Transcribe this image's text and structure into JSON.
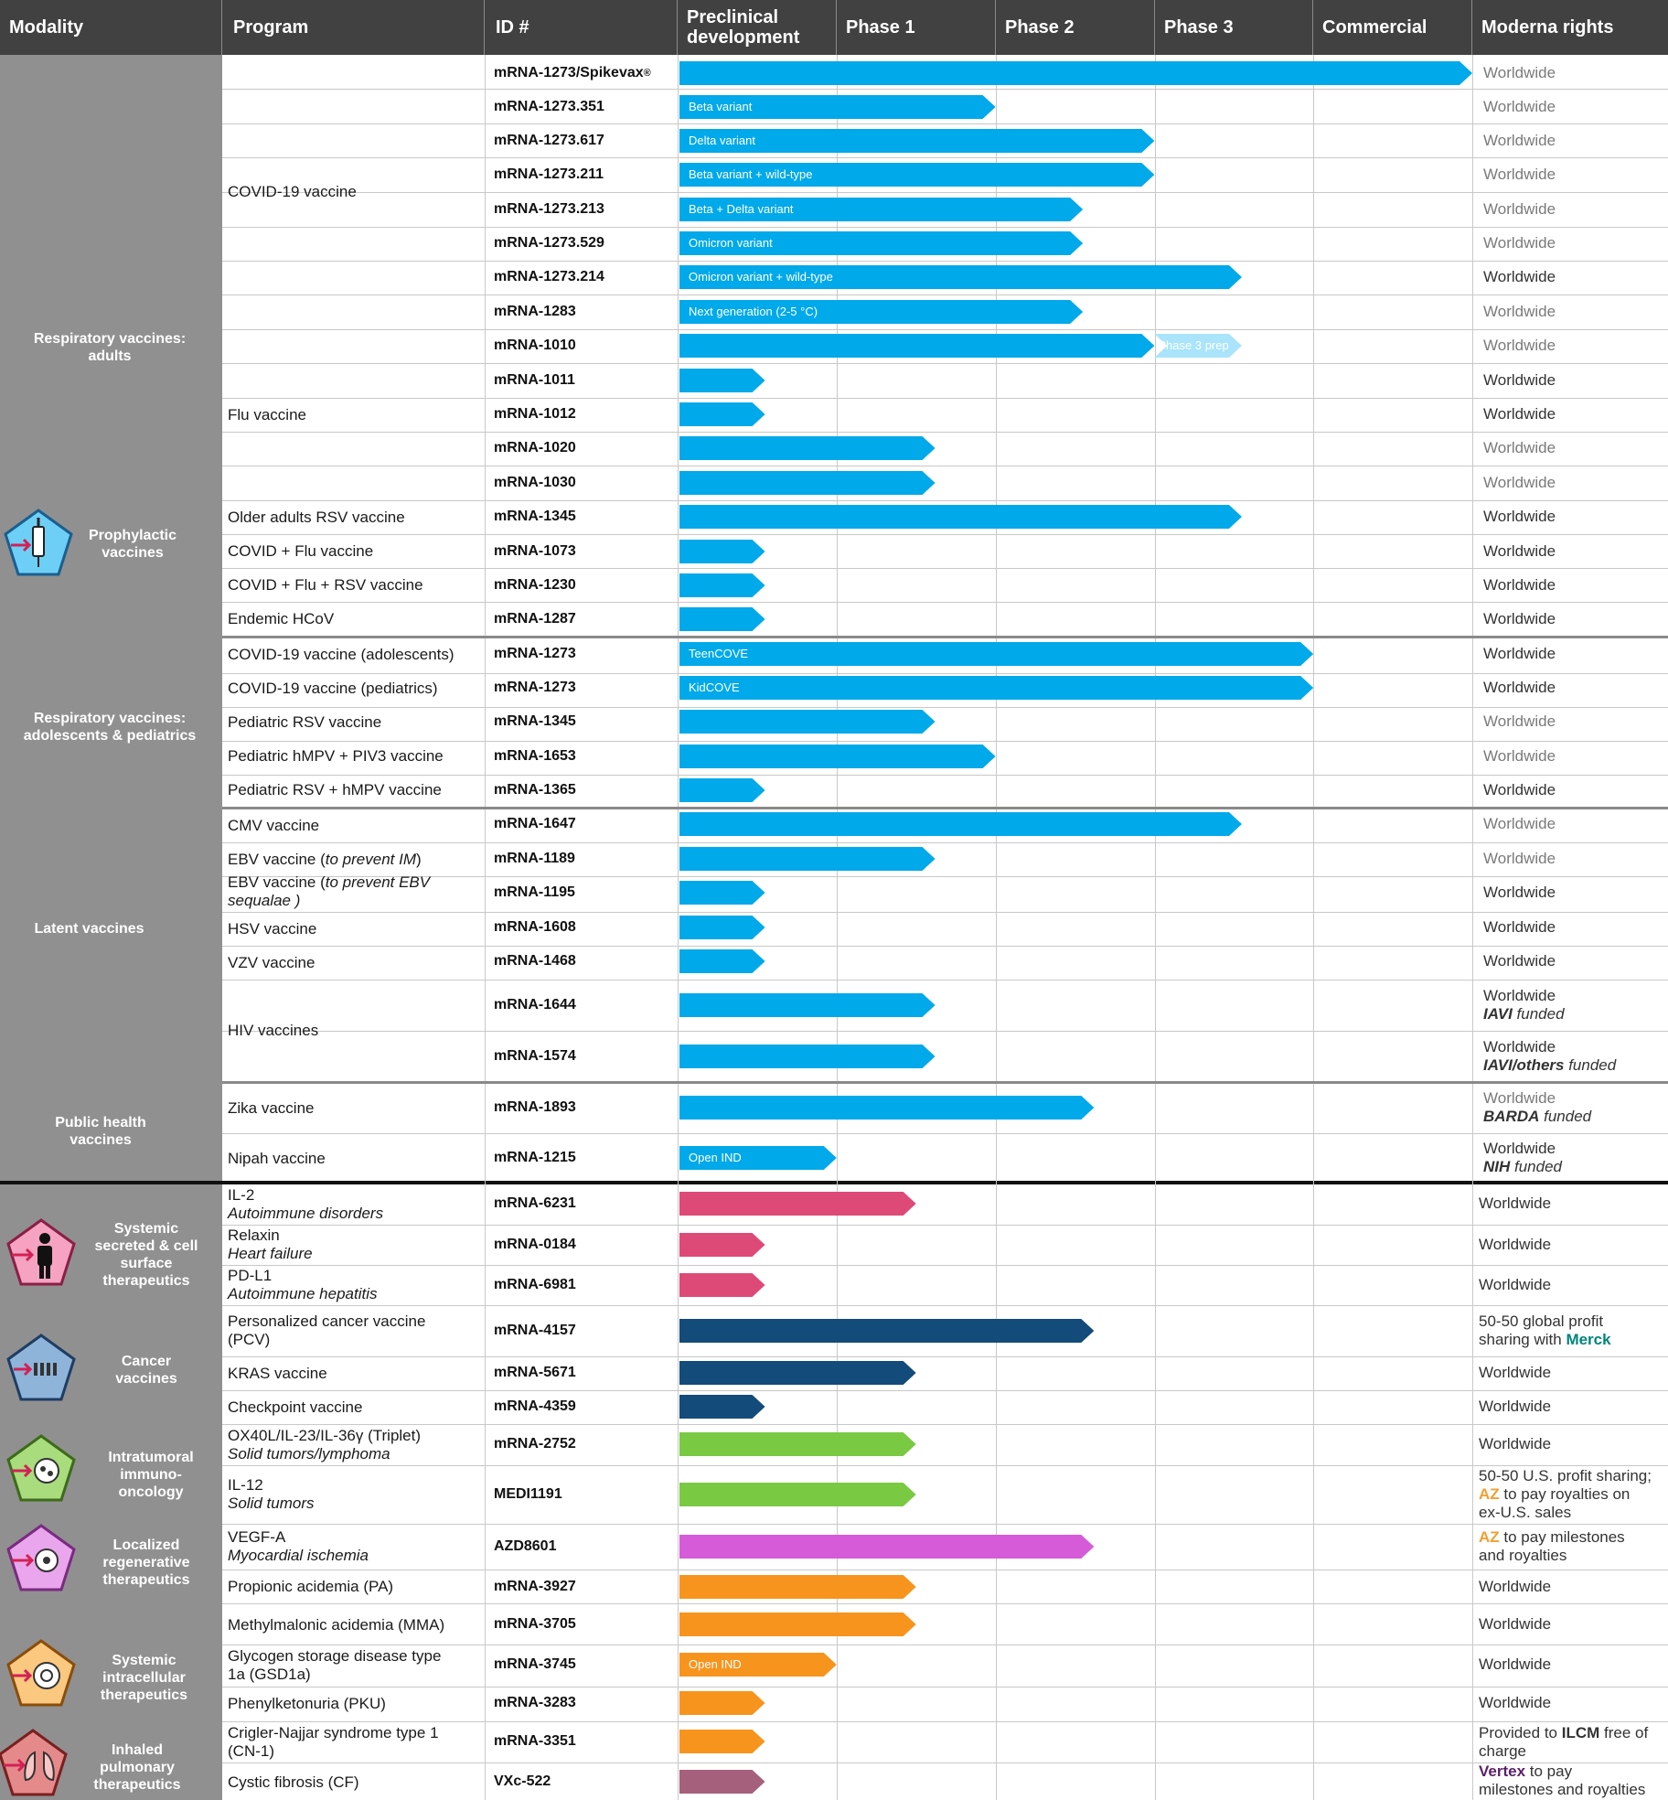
{
  "header": {
    "modality": "Modality",
    "program": "Program",
    "id": "ID #",
    "preclinical": "Preclinical\ndevelopment",
    "phase1": "Phase 1",
    "phase2": "Phase 2",
    "phase3": "Phase 3",
    "commercial": "Commercial",
    "rights": "Moderna rights"
  },
  "colors": {
    "header_bg": "#414141",
    "left_bg": "#909090",
    "blue": "#00a9e9",
    "navy": "#134b7a",
    "pink": "#dd4a78",
    "green": "#7ac943",
    "magenta": "#d65bd8",
    "orange": "#f7941d",
    "mauve": "#a5617c",
    "az_orange": "#f0a030",
    "merck_teal": "#00857c",
    "vertex_purple": "#5b1f69"
  },
  "modalities": {
    "resp_adults": "Respiratory vaccines:\nadults",
    "prophylactic": "Prophylactic\nvaccines",
    "resp_peds": "Respiratory vaccines:\nadolescents & pediatrics",
    "latent": "Latent vaccines",
    "public_health": "Public health\nvaccines",
    "systemic_secreted": "Systemic\nsecreted & cell\nsurface\ntherapeutics",
    "cancer": "Cancer\nvaccines",
    "intratumoral": "Intratumoral\nimmuno-\noncology",
    "localized": "Localized\nregenerative\ntherapeutics",
    "systemic_intracellular": "Systemic\nintracellular\ntherapeutics",
    "inhaled": "Inhaled\npulmonary\ntherapeutics"
  },
  "programs": {
    "covid": "COVID-19 vaccine",
    "flu": "Flu vaccine",
    "older_rsv": "Older adults RSV vaccine",
    "covid_flu": "COVID + Flu vaccine",
    "covid_flu_rsv": "COVID + Flu + RSV vaccine",
    "endemic": "Endemic HCoV",
    "covid_adol": "COVID-19 vaccine (adolescents)",
    "covid_ped": "COVID-19 vaccine (pediatrics)",
    "ped_rsv": "Pediatric  RSV vaccine",
    "ped_hmpv": "Pediatric hMPV + PIV3 vaccine",
    "ped_rsv_hmpv": "Pediatric RSV + hMPV vaccine",
    "cmv": "CMV vaccine",
    "ebv1_a": "EBV vaccine (",
    "ebv1_b": "to prevent IM",
    "ebv1_c": ")",
    "ebv2_a": "EBV vaccine (",
    "ebv2_b": "to prevent EBV",
    "ebv2_c": "sequalae )",
    "hsv": "HSV vaccine",
    "vzv": "VZV vaccine",
    "hiv": "HIV vaccines",
    "zika": "Zika vaccine",
    "nipah": "Nipah vaccine",
    "il2": "IL-2",
    "il2_sub": "Autoimmune disorders",
    "relaxin": "Relaxin",
    "relaxin_sub": "Heart failure",
    "pdl1": "PD-L1",
    "pdl1_sub": "Autoimmune hepatitis",
    "pcv1": "Personalized cancer vaccine",
    "pcv2": "(PCV)",
    "kras": "KRAS vaccine",
    "checkpoint": "Checkpoint vaccine",
    "triplet": "OX40L/IL-23/IL-36γ  (Triplet)",
    "triplet_sub": "Solid tumors/lymphoma",
    "il12": "IL-12",
    "il12_sub": "Solid tumors",
    "vegf": "VEGF-A",
    "vegf_sub": "Myocardial ischemia",
    "pa": "Propionic acidemia (PA)",
    "mma": "Methylmalonic acidemia (MMA)",
    "gsd1": "Glycogen storage disease type",
    "gsd2": "1a (GSD1a)",
    "pku": "Phenylketonuria (PKU)",
    "cn1": "Crigler-Najjar syndrome type 1",
    "cn2": "(CN-1)",
    "cf": "Cystic fibrosis (CF)"
  },
  "ids": {
    "r1": "mRNA-1273/Spikevax",
    "r1_reg": "®",
    "r2": "mRNA-1273.351",
    "r3": "mRNA-1273.617",
    "r4": "mRNA-1273.211",
    "r5": "mRNA-1273.213",
    "r6": "mRNA-1273.529",
    "r7": "mRNA-1273.214",
    "r8": "mRNA-1283",
    "r9": "mRNA-1010",
    "r10": "mRNA-1011",
    "r11": "mRNA-1012",
    "r12": "mRNA-1020",
    "r13": "mRNA-1030",
    "r14": "mRNA-1345",
    "r15": "mRNA-1073",
    "r16": "mRNA-1230",
    "r17": "mRNA-1287",
    "r18": "mRNA-1273",
    "r19": "mRNA-1273",
    "r20": "mRNA-1345",
    "r21": "mRNA-1653",
    "r22": "mRNA-1365",
    "r23": "mRNA-1647",
    "r24": "mRNA-1189",
    "r25": "mRNA-1195",
    "r26": "mRNA-1608",
    "r27": "mRNA-1468",
    "r28": "mRNA-1644",
    "r29": "mRNA-1574",
    "r30": "mRNA-1893",
    "r31": "mRNA-1215",
    "r32": "mRNA-6231",
    "r33": "mRNA-0184",
    "r34": "mRNA-6981",
    "r35": "mRNA-4157",
    "r36": "mRNA-5671",
    "r37": "mRNA-4359",
    "r38": "mRNA-2752",
    "r39": "MEDI1191",
    "r40": "AZD8601",
    "r41": "mRNA-3927",
    "r42": "mRNA-3705",
    "r43": "mRNA-3745",
    "r44": "mRNA-3283",
    "r45": "mRNA-3351",
    "r46": "VXc-522"
  },
  "bars": {
    "r1": {
      "label": "",
      "stage": 5.0,
      "color": "blue"
    },
    "r2": {
      "label": "Beta variant",
      "stage": 2.0,
      "color": "blue"
    },
    "r3": {
      "label": "Delta variant",
      "stage": 3.0,
      "color": "blue"
    },
    "r4": {
      "label": "Beta variant + wild-type",
      "stage": 3.0,
      "color": "blue"
    },
    "r5": {
      "label": "Beta + Delta variant",
      "stage": 2.55,
      "color": "blue"
    },
    "r6": {
      "label": "Omicron variant",
      "stage": 2.55,
      "color": "blue"
    },
    "r7": {
      "label": "Omicron variant + wild-type",
      "stage": 3.55,
      "color": "blue"
    },
    "r8": {
      "label": "Next generation (2-5 °C)",
      "stage": 2.55,
      "color": "blue"
    },
    "r9": {
      "label": "",
      "stage": 3.0,
      "color": "blue"
    },
    "r9_ext": {
      "label": "Phase 3 prep",
      "stage": 3.55,
      "color": "#a9e4fa"
    },
    "r10": {
      "label": "",
      "stage": 0.55,
      "color": "blue"
    },
    "r11": {
      "label": "",
      "stage": 0.55,
      "color": "blue"
    },
    "r12": {
      "label": "",
      "stage": 1.62,
      "color": "blue"
    },
    "r13": {
      "label": "",
      "stage": 1.62,
      "color": "blue"
    },
    "r14": {
      "label": "",
      "stage": 3.55,
      "color": "blue"
    },
    "r15": {
      "label": "",
      "stage": 0.55,
      "color": "blue"
    },
    "r16": {
      "label": "",
      "stage": 0.55,
      "color": "blue"
    },
    "r17": {
      "label": "",
      "stage": 0.55,
      "color": "blue"
    },
    "r18": {
      "label": "TeenCOVE",
      "stage": 4.0,
      "color": "blue"
    },
    "r19": {
      "label": "KidCOVE",
      "stage": 4.0,
      "color": "blue"
    },
    "r20": {
      "label": "",
      "stage": 1.62,
      "color": "blue"
    },
    "r21": {
      "label": "",
      "stage": 2.0,
      "color": "blue"
    },
    "r22": {
      "label": "",
      "stage": 0.55,
      "color": "blue"
    },
    "r23": {
      "label": "",
      "stage": 3.55,
      "color": "blue"
    },
    "r24": {
      "label": "",
      "stage": 1.62,
      "color": "blue"
    },
    "r25": {
      "label": "",
      "stage": 0.55,
      "color": "blue"
    },
    "r26": {
      "label": "",
      "stage": 0.55,
      "color": "blue"
    },
    "r27": {
      "label": "",
      "stage": 0.55,
      "color": "blue"
    },
    "r28": {
      "label": "",
      "stage": 1.62,
      "color": "blue"
    },
    "r29": {
      "label": "",
      "stage": 1.62,
      "color": "blue"
    },
    "r30": {
      "label": "",
      "stage": 2.62,
      "color": "blue"
    },
    "r31": {
      "label": "Open IND",
      "stage": 1.0,
      "color": "blue"
    },
    "r32": {
      "label": "",
      "stage": 1.5,
      "color": "pink"
    },
    "r33": {
      "label": "",
      "stage": 0.55,
      "color": "pink"
    },
    "r34": {
      "label": "",
      "stage": 0.55,
      "color": "pink"
    },
    "r35": {
      "label": "",
      "stage": 2.62,
      "color": "navy"
    },
    "r36": {
      "label": "",
      "stage": 1.5,
      "color": "navy"
    },
    "r37": {
      "label": "",
      "stage": 0.55,
      "color": "navy"
    },
    "r38": {
      "label": "",
      "stage": 1.5,
      "color": "green"
    },
    "r39": {
      "label": "",
      "stage": 1.5,
      "color": "green"
    },
    "r40": {
      "label": "",
      "stage": 2.62,
      "color": "magenta"
    },
    "r41": {
      "label": "",
      "stage": 1.5,
      "color": "orange"
    },
    "r42": {
      "label": "",
      "stage": 1.5,
      "color": "orange"
    },
    "r43": {
      "label": "Open IND",
      "stage": 1.0,
      "color": "orange"
    },
    "r44": {
      "label": "",
      "stage": 0.55,
      "color": "orange"
    },
    "r45": {
      "label": "",
      "stage": 0.55,
      "color": "orange"
    },
    "r46": {
      "label": "",
      "stage": 0.55,
      "color": "mauve"
    }
  },
  "rights": {
    "ww": "Worldwide",
    "iavi": "IAVI",
    "iavi_others": "IAVI/others",
    "barda": "BARDA",
    "nih": "NIH",
    "funded": " funded",
    "pcv_a": "50-50 global profit",
    "pcv_b": "sharing with ",
    "merck": "Merck",
    "il12_a": "50-50 U.S. profit sharing;",
    "az": "AZ",
    "il12_b": " to pay royalties on",
    "il12_c": "ex-U.S. sales",
    "vegf_b": " to pay milestones",
    "vegf_c": "and royalties",
    "cn_a": "Provided to ",
    "ilcm": "ILCM",
    "cn_b": " free of",
    "cn_c": "charge",
    "vertex": "Vertex",
    "cf_b": " to pay",
    "cf_c": "milestones and royalties"
  }
}
